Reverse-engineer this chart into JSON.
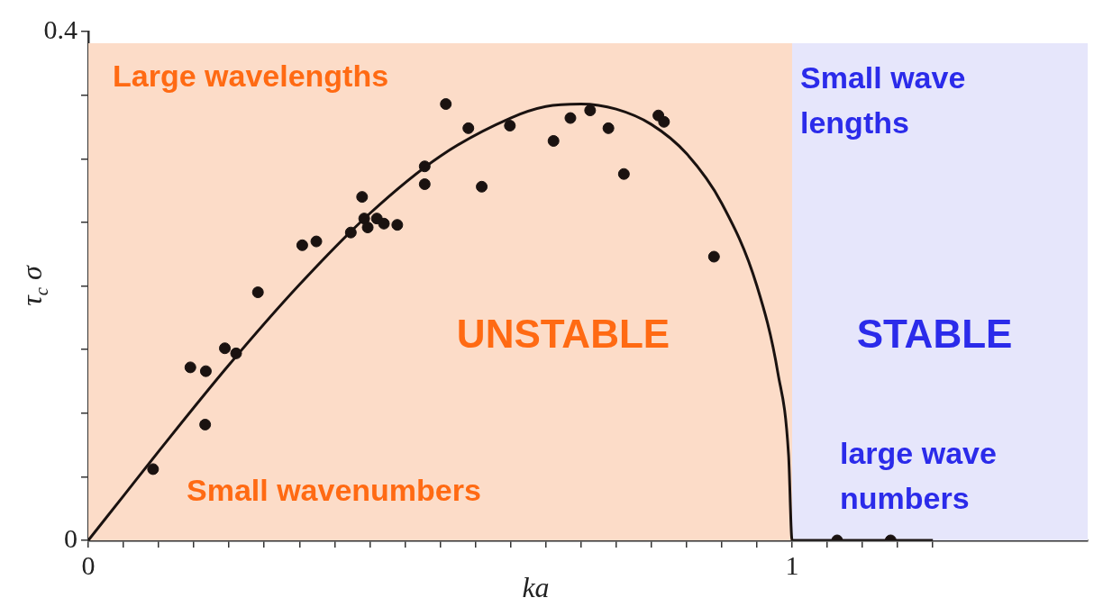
{
  "chart_data": {
    "type": "scatter",
    "xlabel": "ka",
    "ylabel": "τ$_{c}$ σ",
    "xlim": [
      0,
      1.42
    ],
    "ylim": [
      0,
      0.4
    ],
    "xticks": [
      0,
      {
        "value": 0.05,
        "label": null
      },
      {
        "value": 0.1,
        "label": null
      },
      {
        "value": 0.15,
        "label": null
      },
      {
        "value": 0.2,
        "label": null
      },
      {
        "value": 0.25,
        "label": null
      },
      {
        "value": 0.3,
        "label": null
      },
      {
        "value": 0.35,
        "label": null
      },
      {
        "value": 0.4,
        "label": null
      },
      {
        "value": 0.45,
        "label": null
      },
      {
        "value": 0.5,
        "label": null
      },
      {
        "value": 0.55,
        "label": null
      },
      {
        "value": 0.6,
        "label": null
      },
      {
        "value": 0.65,
        "label": null
      },
      {
        "value": 0.7,
        "label": null
      },
      {
        "value": 0.75,
        "label": null
      },
      {
        "value": 0.8,
        "label": null
      },
      {
        "value": 0.85,
        "label": null
      },
      {
        "value": 0.9,
        "label": null
      },
      {
        "value": 0.95,
        "label": null
      },
      1,
      {
        "value": 1.05,
        "label": null
      },
      {
        "value": 1.1,
        "label": null
      },
      {
        "value": 1.15,
        "label": null
      },
      {
        "value": 1.2,
        "label": null
      }
    ],
    "yticks": [
      0,
      {
        "value": 0.05,
        "label": null
      },
      {
        "value": 0.1,
        "label": null
      },
      {
        "value": 0.15,
        "label": null
      },
      {
        "value": 0.2,
        "label": null
      },
      {
        "value": 0.25,
        "label": null
      },
      {
        "value": 0.3,
        "label": null
      },
      {
        "value": 0.35,
        "label": null
      },
      0.4
    ],
    "grid": false,
    "legend": false,
    "series": [
      {
        "type": "line",
        "marker": "none",
        "color": "#1a1210",
        "x": [
          0,
          0.05,
          0.1,
          0.2,
          0.3,
          0.4,
          0.5,
          0.6,
          0.65,
          0.7,
          0.75,
          0.8,
          0.85,
          0.9,
          0.95,
          0.98,
          0.995,
          1,
          1.2
        ],
        "values": [
          0,
          0.035,
          0.07,
          0.138,
          0.201,
          0.257,
          0.302,
          0.332,
          0.341,
          0.343,
          0.339,
          0.327,
          0.304,
          0.265,
          0.2,
          0.131,
          0.067,
          0,
          0
        ]
      },
      {
        "type": "scatter",
        "marker": "circle",
        "color": "#1a1210",
        "x": [
          0.092,
          0.145,
          0.167,
          0.166,
          0.194,
          0.21,
          0.241,
          0.304,
          0.324,
          0.373,
          0.389,
          0.392,
          0.397,
          0.41,
          0.42,
          0.439,
          0.478,
          0.478,
          0.508,
          0.54,
          0.559,
          0.599,
          0.661,
          0.685,
          0.713,
          0.739,
          0.761,
          0.81,
          0.818,
          0.889,
          1.064,
          1.14
        ],
        "values": [
          0.056,
          0.136,
          0.133,
          0.091,
          0.151,
          0.147,
          0.195,
          0.232,
          0.235,
          0.242,
          0.27,
          0.253,
          0.246,
          0.253,
          0.249,
          0.248,
          0.294,
          0.28,
          0.343,
          0.324,
          0.278,
          0.326,
          0.314,
          0.332,
          0.338,
          0.324,
          0.288,
          0.334,
          0.329,
          0.223,
          0,
          0
        ]
      }
    ],
    "bands": [
      {
        "axis": "x",
        "from": 0,
        "to": 1,
        "color": "#fcdcc8"
      },
      {
        "axis": "x",
        "from": 1,
        "to": 1.42,
        "color": "#e6e6fb"
      }
    ],
    "annotations": [
      "Large wavelengths",
      "Small wave lengths",
      "UNSTABLE",
      "STABLE",
      "Small wavenumbers",
      "large wave numbers"
    ]
  }
}
